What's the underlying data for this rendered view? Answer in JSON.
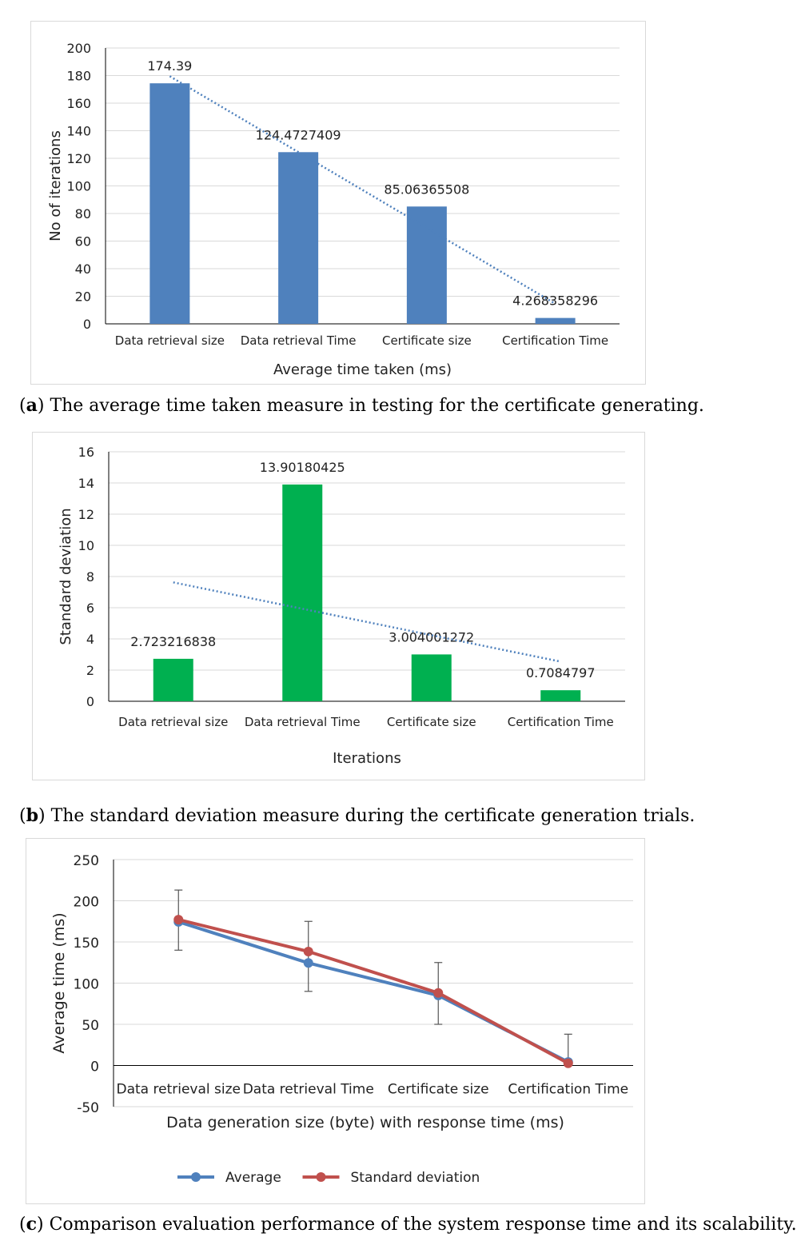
{
  "chart_data": [
    {
      "type": "bar",
      "categories": [
        "Data retrieval size",
        "Data retrieval Time",
        "Certificate size",
        "Certification Time"
      ],
      "values": [
        174.39,
        124.4727409,
        85.06365508,
        4.268358296
      ],
      "data_labels": [
        "174.39",
        "124.4727409",
        "85.06365508",
        "4.268358296"
      ],
      "xlabel": "Average time taken (ms)",
      "ylabel": "No of iterations",
      "ylim": [
        0,
        200
      ],
      "yticks": [
        "0",
        "20",
        "40",
        "60",
        "80",
        "100",
        "120",
        "140",
        "160",
        "180",
        "200"
      ],
      "trendline": "linear",
      "grid": true,
      "color": "#4f81bd"
    },
    {
      "type": "bar",
      "categories": [
        "Data retrieval size",
        "Data retrieval Time",
        "Certificate size",
        "Certification Time"
      ],
      "values": [
        2.723216838,
        13.90180425,
        3.004001272,
        0.7084797
      ],
      "data_labels": [
        "2.723216838",
        "13.90180425",
        "3.004001272",
        "0.7084797"
      ],
      "xlabel": "Iterations",
      "ylabel": "Standard deviation",
      "ylim": [
        0,
        16
      ],
      "yticks": [
        "0",
        "2",
        "4",
        "6",
        "8",
        "10",
        "12",
        "14",
        "16"
      ],
      "trendline": "linear",
      "grid": true,
      "color": "#00b050"
    },
    {
      "type": "line",
      "categories": [
        "Data retrieval size",
        "Data retrieval Time",
        "Certificate size",
        "Certification Time"
      ],
      "series": [
        {
          "name": "Average",
          "values": [
            174.39,
            124.47,
            85.06,
            4.27
          ],
          "color": "#4f81bd"
        },
        {
          "name": "Standard deviation",
          "values": [
            177.11,
            138.37,
            88.07,
            2.7
          ],
          "color": "#c0504d"
        }
      ],
      "error_low": [
        140,
        90,
        50,
        0
      ],
      "error_high": [
        213,
        175,
        125,
        38
      ],
      "xlabel": "Data generation size (byte) with response time (ms)",
      "ylabel": "Average time (ms)",
      "ylim": [
        -50,
        250
      ],
      "yticks": [
        "-50",
        "0",
        "50",
        "100",
        "150",
        "200",
        "250"
      ],
      "legend": "bottom",
      "grid": true
    }
  ],
  "captions": [
    {
      "tag": "a",
      "text": "The average time taken measure in testing for the certificate generating."
    },
    {
      "tag": "b",
      "text": "The standard deviation measure during the certificate generation trials."
    },
    {
      "tag": "c",
      "text": "Comparison evaluation performance of the system response time and its scalability."
    }
  ]
}
